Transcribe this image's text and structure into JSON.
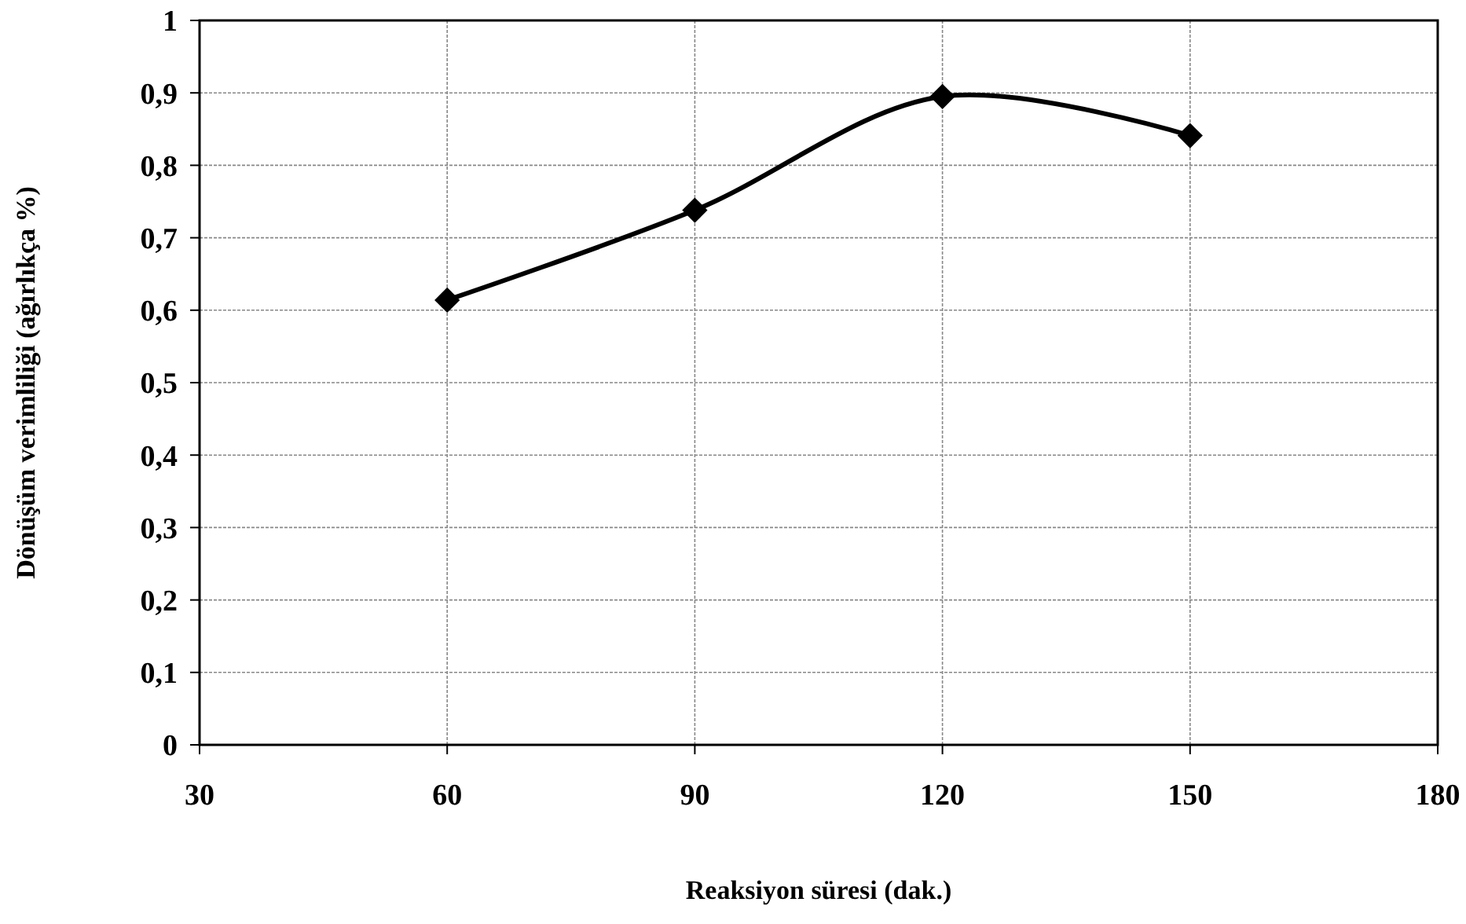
{
  "chart_data": {
    "type": "line",
    "xlabel": "Reaksiyon süresi (dak.)",
    "ylabel": "Dönüşüm verimliliği (ağırlıkça %)",
    "x": [
      60,
      90,
      120,
      150
    ],
    "series": [
      {
        "color": "#000000",
        "values": [
          0.614,
          0.738,
          0.895,
          0.841
        ]
      }
    ],
    "xlim": [
      30,
      180
    ],
    "xticks": [
      30,
      60,
      90,
      120,
      150,
      180
    ],
    "ylim": [
      0,
      1
    ],
    "yticks": [
      {
        "value": 0,
        "label": "0"
      },
      {
        "value": 0.1,
        "label": "0,1"
      },
      {
        "value": 0.2,
        "label": "0,2"
      },
      {
        "value": 0.3,
        "label": "0,3"
      },
      {
        "value": 0.4,
        "label": "0,4"
      },
      {
        "value": 0.5,
        "label": "0,5"
      },
      {
        "value": 0.6,
        "label": "0,6"
      },
      {
        "value": 0.7,
        "label": "0,7"
      },
      {
        "value": 0.8,
        "label": "0,8"
      },
      {
        "value": 0.9,
        "label": "0,9"
      },
      {
        "value": 1,
        "label": "1"
      }
    ],
    "grid": true,
    "marker": "diamond",
    "line_style": "solid"
  }
}
